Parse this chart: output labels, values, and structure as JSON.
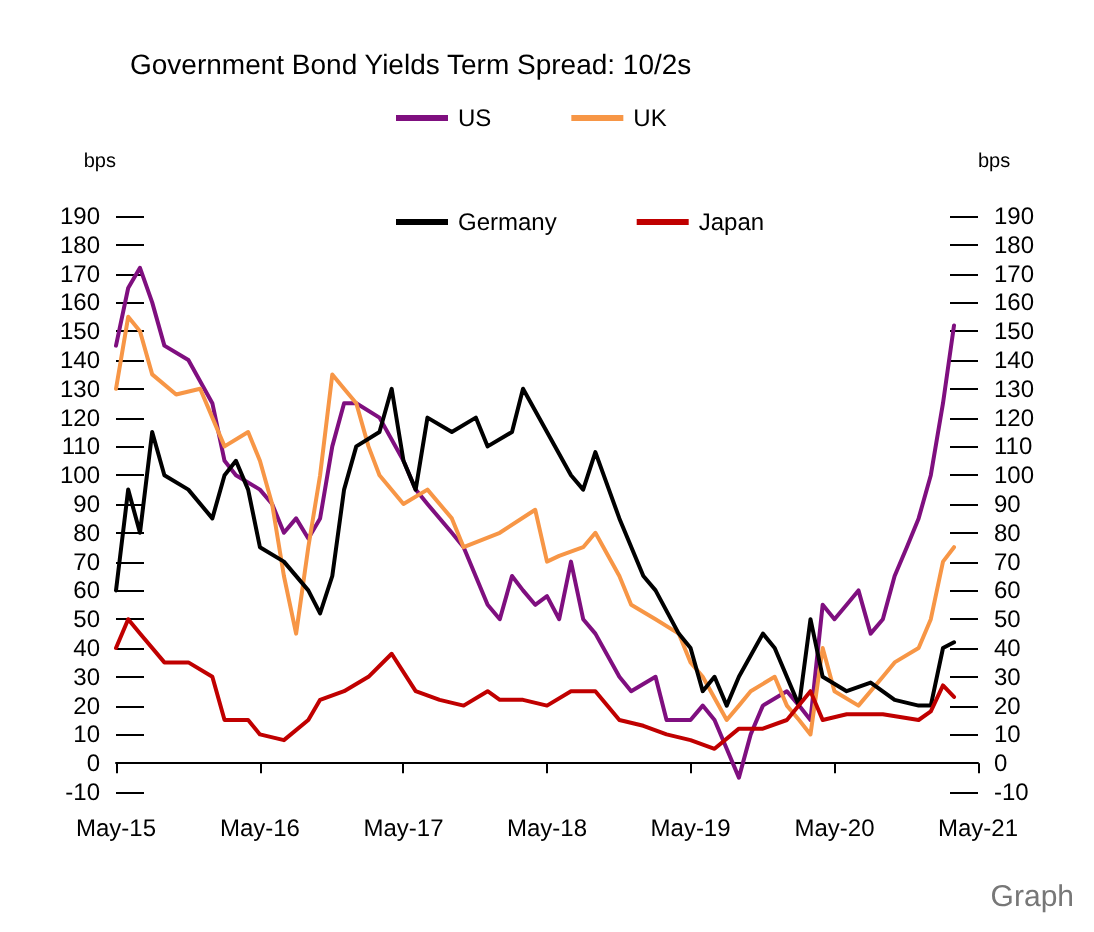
{
  "chart_data": {
    "type": "line",
    "title": "Government Bond Yields Term Spread: 10/2s",
    "ylabel": "bps",
    "y2label": "bps",
    "annotations": [
      "Graph"
    ],
    "xlim": [
      "2015-05",
      "2021-05"
    ],
    "xticks": [
      {
        "value": "2015-05",
        "label": "May-15"
      },
      {
        "value": "2016-05",
        "label": "May-16"
      },
      {
        "value": "2017-05",
        "label": "May-17"
      },
      {
        "value": "2018-05",
        "label": "May-18"
      },
      {
        "value": "2019-05",
        "label": "May-19"
      },
      {
        "value": "2020-05",
        "label": "May-20"
      },
      {
        "value": "2021-05",
        "label": "May-21"
      }
    ],
    "ylim": [
      -10,
      190
    ],
    "yticks": [
      -10,
      0,
      10,
      20,
      30,
      40,
      50,
      60,
      70,
      80,
      90,
      100,
      110,
      120,
      130,
      140,
      150,
      160,
      170,
      180,
      190
    ],
    "y2lim": [
      -10,
      190
    ],
    "y2ticks": [
      -10,
      0,
      10,
      20,
      30,
      40,
      50,
      60,
      70,
      80,
      90,
      100,
      110,
      120,
      130,
      140,
      150,
      160,
      170,
      180,
      190
    ],
    "grid": false,
    "legend": "top",
    "marker": "none",
    "line_style": "solid",
    "series": [
      {
        "name": "US",
        "color": "#7f0f7f",
        "x": [
          "2015-05",
          "2015-06",
          "2015-07",
          "2015-08",
          "2015-09",
          "2015-11",
          "2016-01",
          "2016-02",
          "2016-03",
          "2016-05",
          "2016-06",
          "2016-07",
          "2016-08",
          "2016-09",
          "2016-10",
          "2016-11",
          "2016-12",
          "2017-01",
          "2017-03",
          "2017-05",
          "2017-06",
          "2017-07",
          "2017-09",
          "2017-10",
          "2017-12",
          "2018-01",
          "2018-02",
          "2018-03",
          "2018-04",
          "2018-05",
          "2018-06",
          "2018-07",
          "2018-08",
          "2018-09",
          "2018-11",
          "2018-12",
          "2019-02",
          "2019-03",
          "2019-05",
          "2019-06",
          "2019-07",
          "2019-08",
          "2019-09",
          "2019-10",
          "2019-11",
          "2020-01",
          "2020-02",
          "2020-03",
          "2020-04",
          "2020-05",
          "2020-06",
          "2020-07",
          "2020-08",
          "2020-09",
          "2020-10",
          "2020-11",
          "2020-12",
          "2021-01",
          "2021-02",
          "2021-03"
        ],
        "values": [
          145,
          165,
          172,
          160,
          145,
          140,
          125,
          105,
          100,
          95,
          90,
          80,
          85,
          78,
          85,
          110,
          125,
          125,
          120,
          105,
          95,
          90,
          80,
          75,
          55,
          50,
          65,
          60,
          55,
          58,
          50,
          70,
          50,
          45,
          30,
          25,
          30,
          15,
          15,
          20,
          15,
          5,
          -5,
          10,
          20,
          25,
          20,
          15,
          55,
          50,
          55,
          60,
          45,
          50,
          65,
          75,
          85,
          100,
          125,
          152
        ]
      },
      {
        "name": "UK",
        "color": "#f79646",
        "x": [
          "2015-05",
          "2015-06",
          "2015-07",
          "2015-08",
          "2015-10",
          "2015-12",
          "2016-02",
          "2016-04",
          "2016-05",
          "2016-06",
          "2016-07",
          "2016-08",
          "2016-09",
          "2016-10",
          "2016-11",
          "2016-12",
          "2017-01",
          "2017-02",
          "2017-03",
          "2017-05",
          "2017-07",
          "2017-09",
          "2017-10",
          "2018-01",
          "2018-04",
          "2018-05",
          "2018-06",
          "2018-08",
          "2018-09",
          "2018-11",
          "2018-12",
          "2019-02",
          "2019-04",
          "2019-05",
          "2019-06",
          "2019-08",
          "2019-09",
          "2019-10",
          "2019-12",
          "2020-01",
          "2020-02",
          "2020-03",
          "2020-04",
          "2020-05",
          "2020-07",
          "2020-09",
          "2020-10",
          "2020-12",
          "2021-01",
          "2021-02",
          "2021-03"
        ],
        "values": [
          130,
          155,
          150,
          135,
          128,
          130,
          110,
          115,
          105,
          90,
          65,
          45,
          75,
          100,
          135,
          130,
          125,
          110,
          100,
          90,
          95,
          85,
          75,
          80,
          88,
          70,
          72,
          75,
          80,
          65,
          55,
          50,
          45,
          35,
          30,
          15,
          20,
          25,
          30,
          20,
          15,
          10,
          40,
          25,
          20,
          30,
          35,
          40,
          50,
          70,
          75
        ]
      },
      {
        "name": "Germany",
        "color": "#000000",
        "x": [
          "2015-05",
          "2015-06",
          "2015-07",
          "2015-08",
          "2015-09",
          "2015-11",
          "2016-01",
          "2016-02",
          "2016-03",
          "2016-04",
          "2016-05",
          "2016-07",
          "2016-09",
          "2016-10",
          "2016-11",
          "2016-12",
          "2017-01",
          "2017-03",
          "2017-04",
          "2017-05",
          "2017-06",
          "2017-07",
          "2017-09",
          "2017-11",
          "2017-12",
          "2018-02",
          "2018-03",
          "2018-05",
          "2018-07",
          "2018-08",
          "2018-09",
          "2018-11",
          "2019-01",
          "2019-02",
          "2019-04",
          "2019-05",
          "2019-06",
          "2019-07",
          "2019-08",
          "2019-09",
          "2019-11",
          "2019-12",
          "2020-02",
          "2020-03",
          "2020-04",
          "2020-06",
          "2020-08",
          "2020-10",
          "2020-12",
          "2021-01",
          "2021-02",
          "2021-03"
        ],
        "values": [
          60,
          95,
          80,
          115,
          100,
          95,
          85,
          100,
          105,
          95,
          75,
          70,
          60,
          52,
          65,
          95,
          110,
          115,
          130,
          105,
          95,
          120,
          115,
          120,
          110,
          115,
          130,
          115,
          100,
          95,
          108,
          85,
          65,
          60,
          45,
          40,
          25,
          30,
          20,
          30,
          45,
          40,
          20,
          50,
          30,
          25,
          28,
          22,
          20,
          20,
          40,
          42
        ]
      },
      {
        "name": "Japan",
        "color": "#c00000",
        "x": [
          "2015-05",
          "2015-06",
          "2015-07",
          "2015-09",
          "2015-11",
          "2016-01",
          "2016-02",
          "2016-04",
          "2016-05",
          "2016-07",
          "2016-09",
          "2016-10",
          "2016-12",
          "2017-02",
          "2017-04",
          "2017-06",
          "2017-08",
          "2017-10",
          "2017-12",
          "2018-01",
          "2018-03",
          "2018-05",
          "2018-07",
          "2018-09",
          "2018-11",
          "2019-01",
          "2019-03",
          "2019-05",
          "2019-07",
          "2019-09",
          "2019-11",
          "2020-01",
          "2020-03",
          "2020-04",
          "2020-06",
          "2020-09",
          "2020-12",
          "2021-01",
          "2021-02",
          "2021-03"
        ],
        "values": [
          40,
          50,
          45,
          35,
          35,
          30,
          15,
          15,
          10,
          8,
          15,
          22,
          25,
          30,
          38,
          25,
          22,
          20,
          25,
          22,
          22,
          20,
          25,
          25,
          15,
          13,
          10,
          8,
          5,
          12,
          12,
          15,
          25,
          15,
          17,
          17,
          15,
          18,
          27,
          23
        ]
      }
    ]
  }
}
